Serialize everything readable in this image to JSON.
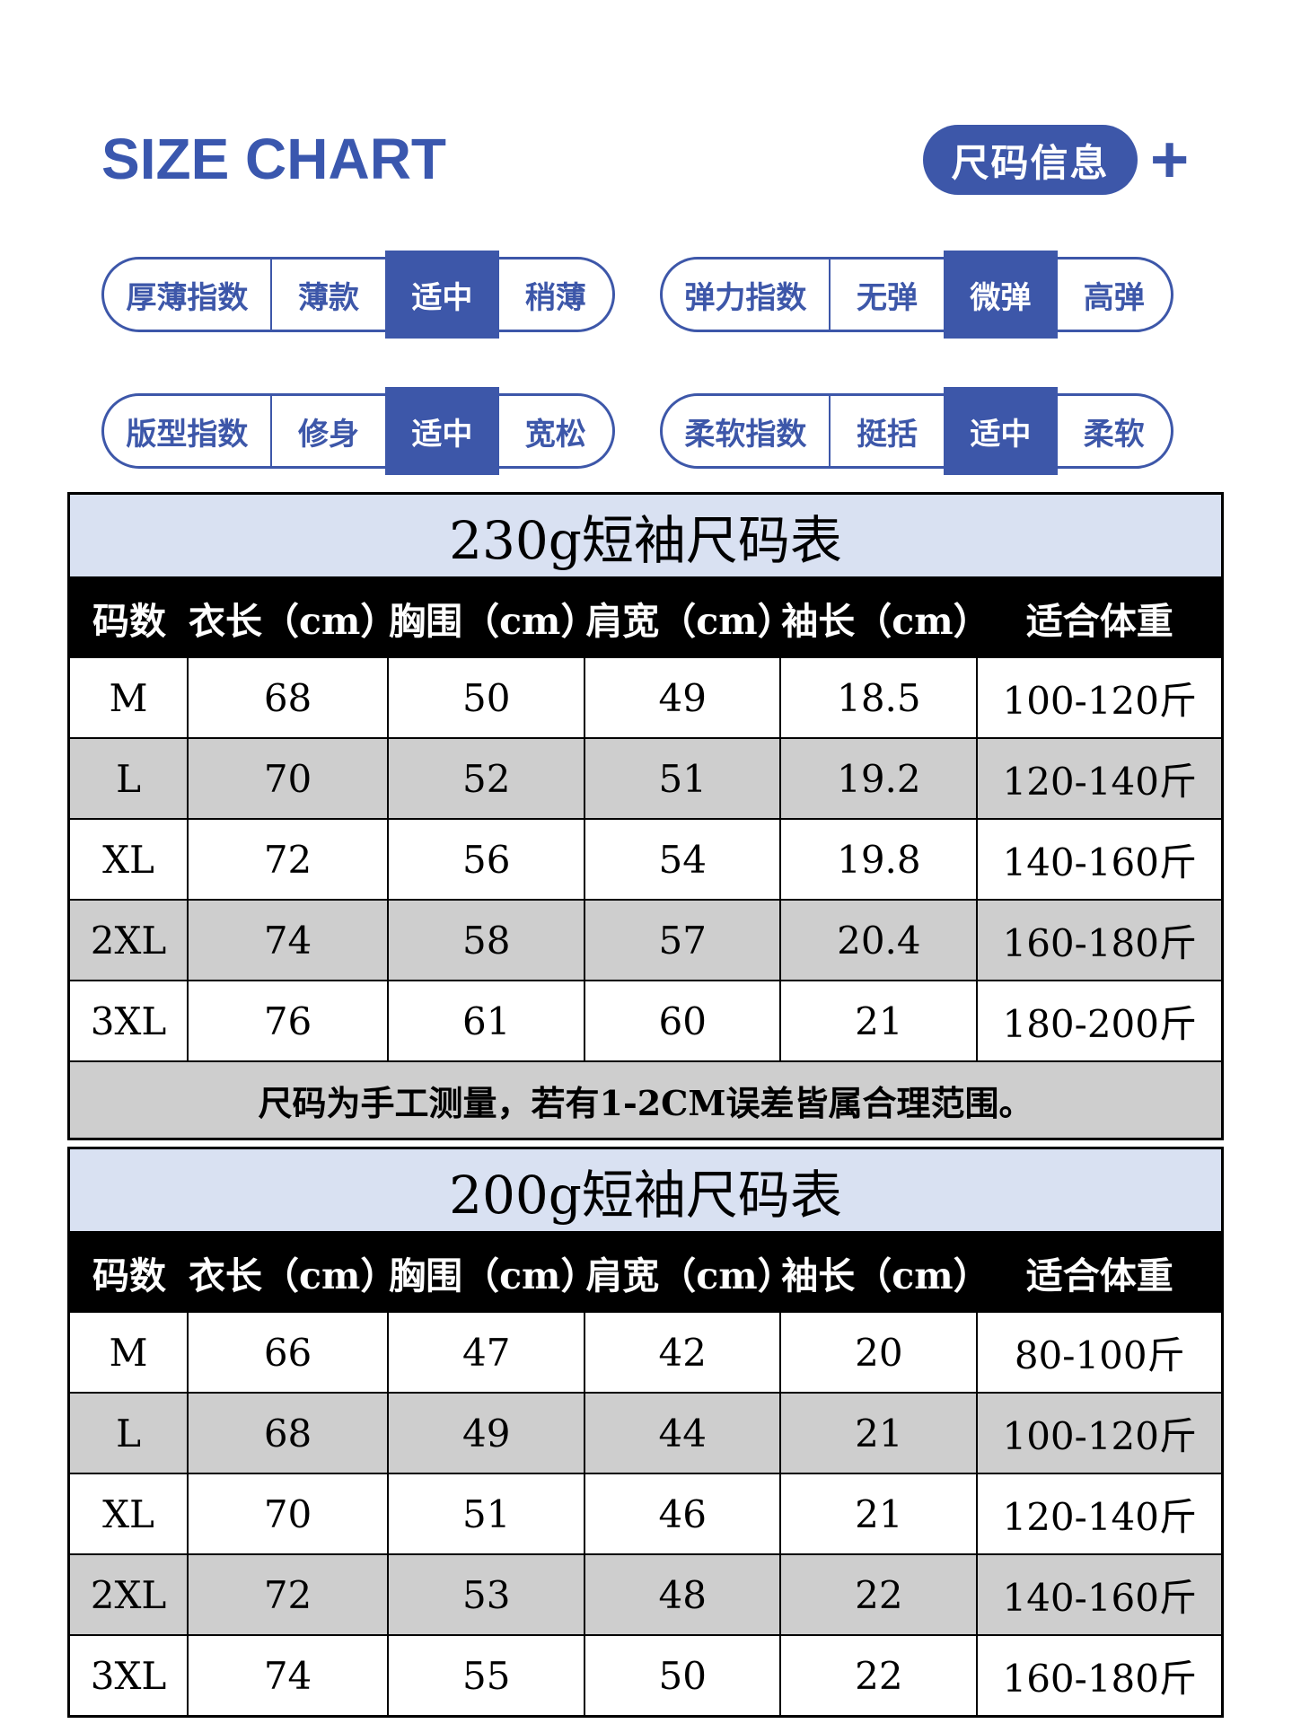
{
  "colors": {
    "accent_blue": "#3d57a9",
    "title_blue_text": "#3a57ae",
    "table_title_bg": "#d9e1f2",
    "row_gray": "#cecece",
    "header_bg": "#000000",
    "header_text": "#ffffff"
  },
  "header": {
    "title": "SIZE CHART",
    "badge_label": "尺码信息",
    "plus_glyph": "+"
  },
  "indicators": [
    {
      "label": "厚薄指数",
      "options": [
        {
          "text": "薄款",
          "selected": false
        },
        {
          "text": "适中",
          "selected": true
        },
        {
          "text": "稍薄",
          "selected": false
        }
      ]
    },
    {
      "label": "弹力指数",
      "options": [
        {
          "text": "无弹",
          "selected": false
        },
        {
          "text": "微弹",
          "selected": true
        },
        {
          "text": "高弹",
          "selected": false
        }
      ]
    },
    {
      "label": "版型指数",
      "options": [
        {
          "text": "修身",
          "selected": false
        },
        {
          "text": "适中",
          "selected": true
        },
        {
          "text": "宽松",
          "selected": false
        }
      ]
    },
    {
      "label": "柔软指数",
      "options": [
        {
          "text": "挺括",
          "selected": false
        },
        {
          "text": "适中",
          "selected": true
        },
        {
          "text": "柔软",
          "selected": false
        }
      ]
    }
  ],
  "tables": [
    {
      "title": "230g短袖尺码表",
      "headers": [
        "码数",
        "衣长（cm）",
        "胸围（cm）",
        "肩宽（cm）",
        "袖长（cm）",
        "适合体重"
      ],
      "rows": [
        [
          "M",
          "68",
          "50",
          "49",
          "18.5",
          "100-120斤"
        ],
        [
          "L",
          "70",
          "52",
          "51",
          "19.2",
          "120-140斤"
        ],
        [
          "XL",
          "72",
          "56",
          "54",
          "19.8",
          "140-160斤"
        ],
        [
          "2XL",
          "74",
          "58",
          "57",
          "20.4",
          "160-180斤"
        ],
        [
          "3XL",
          "76",
          "61",
          "60",
          "21",
          "180-200斤"
        ]
      ],
      "note": "尺码为手工测量，若有1-2CM误差皆属合理范围。"
    },
    {
      "title": "200g短袖尺码表",
      "headers": [
        "码数",
        "衣长（cm）",
        "胸围（cm）",
        "肩宽（cm）",
        "袖长（cm）",
        "适合体重"
      ],
      "rows": [
        [
          "M",
          "66",
          "47",
          "42",
          "20",
          "80-100斤"
        ],
        [
          "L",
          "68",
          "49",
          "44",
          "21",
          "100-120斤"
        ],
        [
          "XL",
          "70",
          "51",
          "46",
          "21",
          "120-140斤"
        ],
        [
          "2XL",
          "72",
          "53",
          "48",
          "22",
          "140-160斤"
        ],
        [
          "3XL",
          "74",
          "55",
          "50",
          "22",
          "160-180斤"
        ]
      ]
    }
  ]
}
